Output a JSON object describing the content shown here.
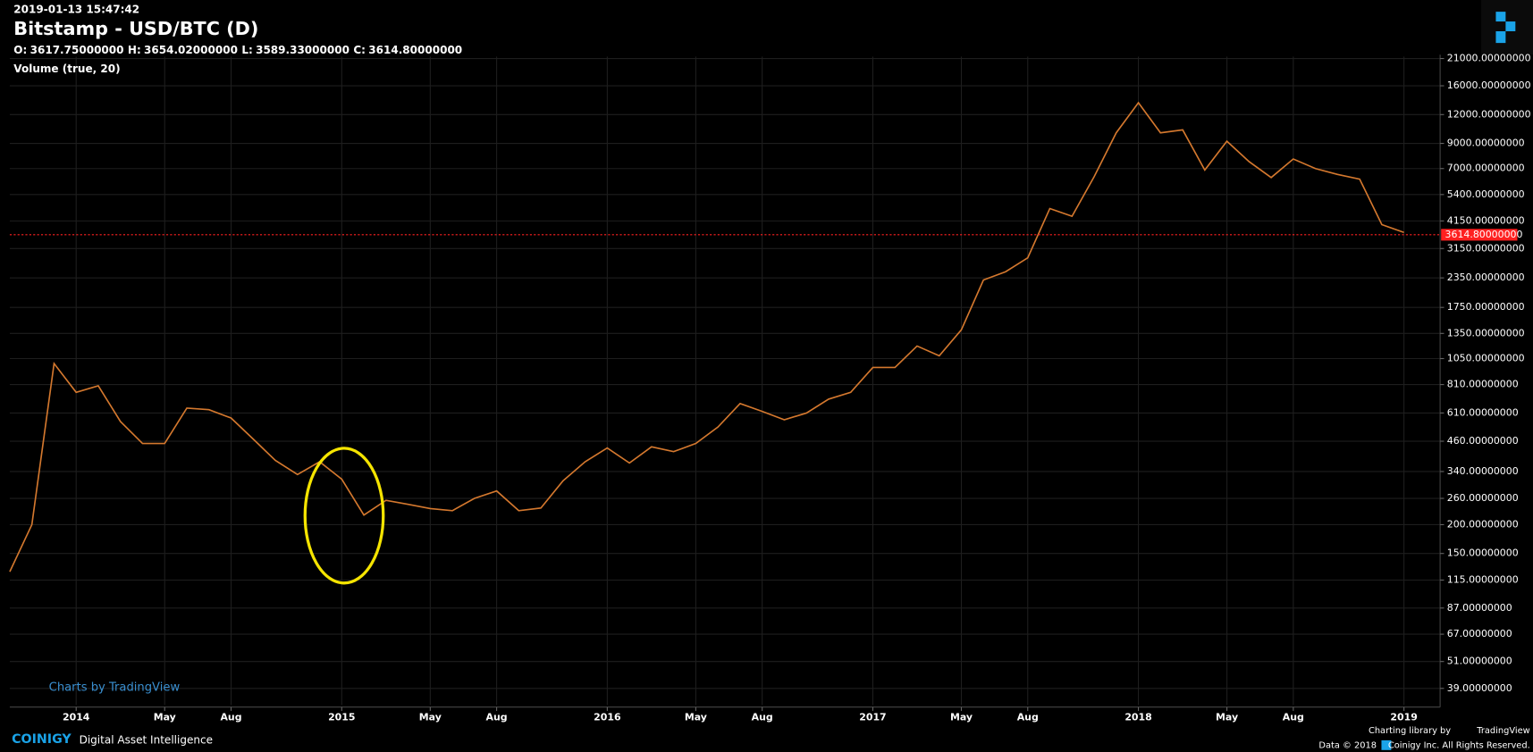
{
  "timestamp": "2019-01-13 15:47:42",
  "ohlc": [
    {
      "key": "O:",
      "text": "3617.75000000"
    },
    {
      "key": "H:",
      "text": "3654.02000000"
    },
    {
      "key": "L:",
      "text": "3589.33000000"
    },
    {
      "key": "C:",
      "text": "3614.80000000"
    }
  ],
  "indicator": "Volume (true, 20)",
  "watermark": "Charts by TradingView",
  "footer": {
    "brand": "COINIGY",
    "tagline": "Digital Asset Intelligence",
    "credit": "Charting library by",
    "credit_brand": "TradingView",
    "data_note": "Data © 2018",
    "rights": "Coinigy Inc. All Rights Reserved."
  },
  "chart_data": {
    "type": "line",
    "title": "Bitstamp - USD/BTC (D)",
    "log_scale": true,
    "grid": true,
    "x": [
      "2013-10",
      "2013-11",
      "2013-12",
      "2014-01",
      "2014-02",
      "2014-03",
      "2014-04",
      "2014-05",
      "2014-06",
      "2014-07",
      "2014-08",
      "2014-09",
      "2014-10",
      "2014-11",
      "2014-12",
      "2015-01",
      "2015-02",
      "2015-03",
      "2015-04",
      "2015-05",
      "2015-06",
      "2015-07",
      "2015-08",
      "2015-09",
      "2015-10",
      "2015-11",
      "2015-12",
      "2016-01",
      "2016-02",
      "2016-03",
      "2016-04",
      "2016-05",
      "2016-06",
      "2016-07",
      "2016-08",
      "2016-09",
      "2016-10",
      "2016-11",
      "2016-12",
      "2017-01",
      "2017-02",
      "2017-03",
      "2017-04",
      "2017-05",
      "2017-06",
      "2017-07",
      "2017-08",
      "2017-09",
      "2017-10",
      "2017-11",
      "2017-12",
      "2018-01",
      "2018-02",
      "2018-03",
      "2018-04",
      "2018-05",
      "2018-06",
      "2018-07",
      "2018-08",
      "2018-09",
      "2018-10",
      "2018-11",
      "2018-12",
      "2019-01"
    ],
    "series": [
      {
        "name": "USD/BTC",
        "color": "#d4782e",
        "values": [
          125,
          200,
          1000,
          750,
          800,
          560,
          450,
          450,
          640,
          630,
          580,
          470,
          380,
          330,
          375,
          315,
          220,
          255,
          245,
          235,
          230,
          260,
          280,
          230,
          236,
          310,
          375,
          430,
          370,
          435,
          415,
          450,
          530,
          670,
          620,
          570,
          610,
          700,
          750,
          960,
          960,
          1190,
          1080,
          1400,
          2300,
          2500,
          2870,
          4700,
          4350,
          6450,
          10000,
          13500,
          10000,
          10300,
          6900,
          9200,
          7500,
          6400,
          7700,
          7000,
          6600,
          6300,
          4000,
          3700
        ]
      }
    ],
    "last_price": {
      "value": 3614.8,
      "label": "3614.80000000",
      "color": "#ff2020"
    },
    "xlim": [
      "2013-10",
      "2019-01"
    ],
    "xticks": [
      {
        "value": "2014-01",
        "label": "2014"
      },
      {
        "value": "2014-05",
        "label": "May"
      },
      {
        "value": "2014-08",
        "label": "Aug"
      },
      {
        "value": "2015-01",
        "label": "2015"
      },
      {
        "value": "2015-05",
        "label": "May"
      },
      {
        "value": "2015-08",
        "label": "Aug"
      },
      {
        "value": "2016-01",
        "label": "2016"
      },
      {
        "value": "2016-05",
        "label": "May"
      },
      {
        "value": "2016-08",
        "label": "Aug"
      },
      {
        "value": "2017-01",
        "label": "2017"
      },
      {
        "value": "2017-05",
        "label": "May"
      },
      {
        "value": "2017-08",
        "label": "Aug"
      },
      {
        "value": "2018-01",
        "label": "2018"
      },
      {
        "value": "2018-05",
        "label": "May"
      },
      {
        "value": "2018-08",
        "label": "Aug"
      },
      {
        "value": "2019-01",
        "label": "2019"
      }
    ],
    "ylim": [
      33,
      21400
    ],
    "yticks": [
      {
        "value": 21000,
        "label": "21000.00000000"
      },
      {
        "value": 16000,
        "label": "16000.00000000"
      },
      {
        "value": 12000,
        "label": "12000.00000000"
      },
      {
        "value": 9000,
        "label": "9000.00000000"
      },
      {
        "value": 7000,
        "label": "7000.00000000"
      },
      {
        "value": 5400,
        "label": "5400.00000000"
      },
      {
        "value": 4150,
        "label": "4150.00000000"
      },
      {
        "value": 3150,
        "label": "3150.00000000"
      },
      {
        "value": 2350,
        "label": "2350.00000000"
      },
      {
        "value": 1750,
        "label": "1750.00000000"
      },
      {
        "value": 1350,
        "label": "1350.00000000"
      },
      {
        "value": 1050,
        "label": "1050.00000000"
      },
      {
        "value": 810,
        "label": "810.00000000"
      },
      {
        "value": 610,
        "label": "610.00000000"
      },
      {
        "value": 460,
        "label": "460.00000000"
      },
      {
        "value": 340,
        "label": "340.00000000"
      },
      {
        "value": 260,
        "label": "260.00000000"
      },
      {
        "value": 200,
        "label": "200.00000000"
      },
      {
        "value": 150,
        "label": "150.00000000"
      },
      {
        "value": 115,
        "label": "115.00000000"
      },
      {
        "value": 87,
        "label": "87.00000000"
      },
      {
        "value": 67,
        "label": "67.00000000"
      },
      {
        "value": 51,
        "label": "51.00000000"
      },
      {
        "value": 39,
        "label": "39.00000000"
      }
    ]
  }
}
